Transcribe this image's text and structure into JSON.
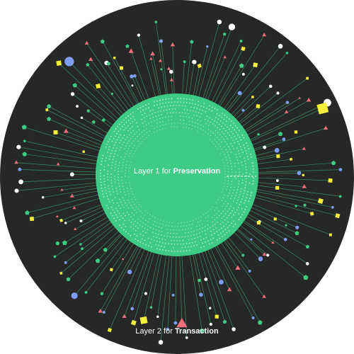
{
  "inner_label": {
    "prefix": "Layer 1 for ",
    "emphasis": "Preservation"
  },
  "outer_label": {
    "prefix": "Layer 2 for ",
    "emphasis": "Transaction"
  },
  "colors": {
    "background": "#262828",
    "core": "#3ecb86",
    "core_dots": "#ffffff",
    "spoke": "#3e9a6a",
    "white_node": "#ffffff",
    "blue_node": "#7f9df0",
    "yellow_node": "#f4ef3a",
    "pink_node": "#ee6e7e",
    "green_node": "#3ecb86"
  },
  "node_types": [
    "white-circle-node",
    "blue-circle-node",
    "yellow-square-node",
    "pink-triangle-node",
    "green-pentagon-node"
  ]
}
